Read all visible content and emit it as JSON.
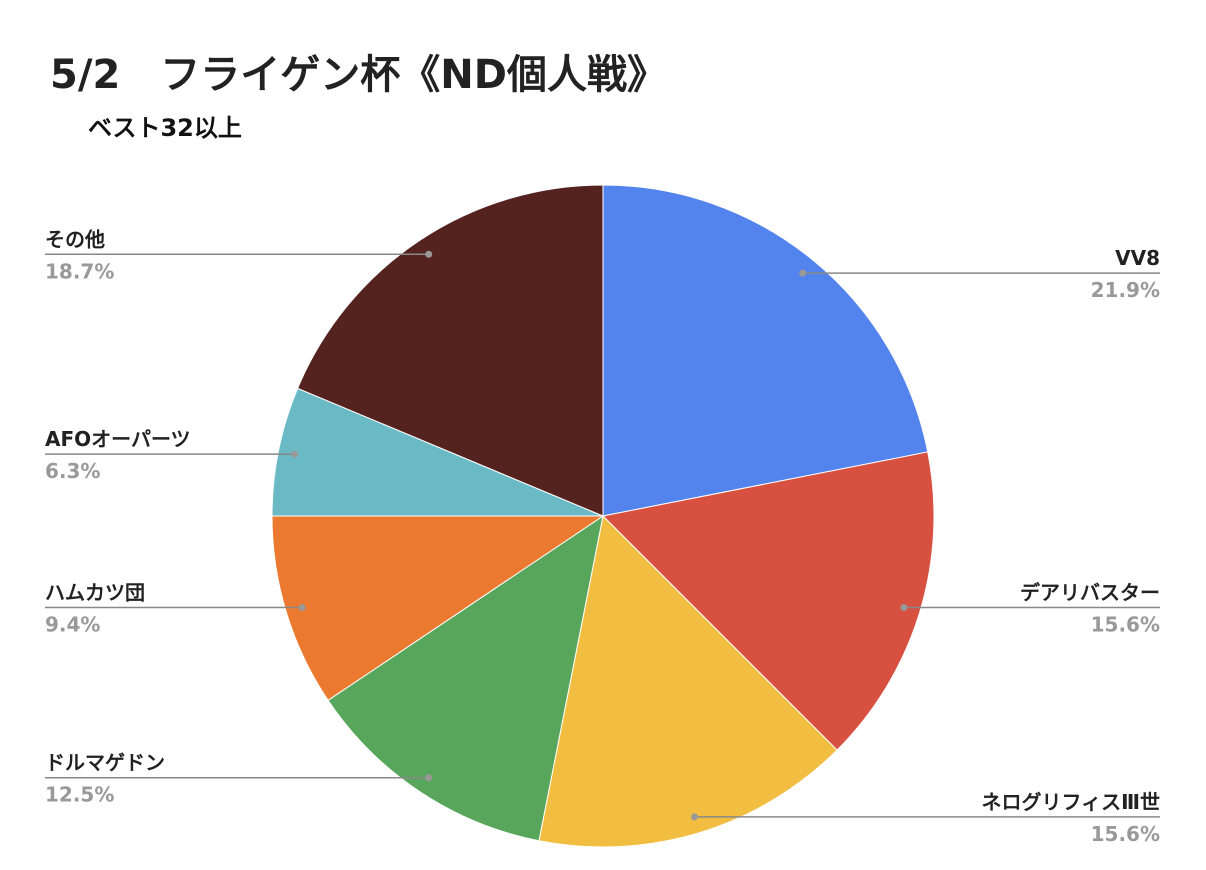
{
  "chart_data": {
    "type": "pie",
    "title": "5/2　フライゲン杯《ND個人戦》",
    "subtitle": "ベスト32以上",
    "categories": [
      "VV8",
      "デアリバスター",
      "ネログリフィスⅢ世",
      "ドルマゲドン",
      "ハムカツ団",
      "AFOオーパーツ",
      "その他"
    ],
    "values": [
      21.9,
      15.6,
      15.6,
      12.5,
      9.4,
      6.3,
      18.7
    ],
    "value_labels": [
      "21.9%",
      "15.6%",
      "15.6%",
      "12.5%",
      "9.4%",
      "6.3%",
      "18.7%"
    ],
    "colors": [
      "#5383ec",
      "#d85040",
      "#f1be42",
      "#58a65c",
      "#eb7a30",
      "#6abac5",
      "#55231f"
    ]
  }
}
